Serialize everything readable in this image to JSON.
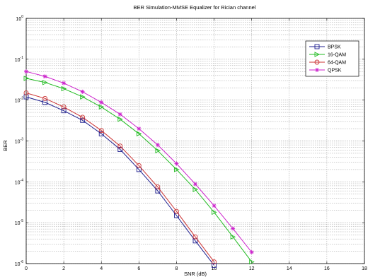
{
  "chart_data": {
    "type": "line",
    "title": "BER Simulation-MMSE Equalizer for Rician channel",
    "xlabel": "SNR (dB)",
    "ylabel": "BER",
    "xlim": [
      0,
      18
    ],
    "ylim": [
      1e-06,
      1
    ],
    "y_scale": "log",
    "grid": true,
    "legend_position": "top-right",
    "x_ticks": [
      "0",
      "2",
      "4",
      "6",
      "8",
      "10",
      "12",
      "14",
      "16",
      "18"
    ],
    "y_ticks": [
      {
        "mantissa": "10",
        "exp": "0",
        "value": 1
      },
      {
        "mantissa": "10",
        "exp": "-1",
        "value": 0.1
      },
      {
        "mantissa": "10",
        "exp": "-2",
        "value": 0.01
      },
      {
        "mantissa": "10",
        "exp": "-3",
        "value": 0.001
      },
      {
        "mantissa": "10",
        "exp": "-4",
        "value": 0.0001
      },
      {
        "mantissa": "10",
        "exp": "-5",
        "value": 1e-05
      },
      {
        "mantissa": "10",
        "exp": "-6",
        "value": 1e-06
      }
    ],
    "series": [
      {
        "name": "BPSK",
        "color": "#1f1f8f",
        "marker": "square",
        "x": [
          0,
          1,
          2,
          3,
          4,
          5,
          6,
          7,
          8,
          9,
          10
        ],
        "values": [
          0.012,
          0.0088,
          0.0055,
          0.0032,
          0.0015,
          0.00062,
          0.0002,
          6e-05,
          1.5e-05,
          3.6e-06,
          9e-07
        ]
      },
      {
        "name": "16-QAM",
        "color": "#22bb22",
        "marker": "triangle-right",
        "x": [
          0,
          1,
          2,
          3,
          4,
          5,
          6,
          7,
          8,
          9,
          10,
          11,
          12
        ],
        "values": [
          0.034,
          0.027,
          0.019,
          0.012,
          0.0068,
          0.0034,
          0.0015,
          0.00058,
          0.0002,
          6.5e-05,
          1.8e-05,
          4.5e-06,
          1.1e-06
        ]
      },
      {
        "name": "64-QAM",
        "color": "#cc3333",
        "marker": "circle",
        "x": [
          0,
          1,
          2,
          3,
          4,
          5,
          6,
          7,
          8,
          9,
          10
        ],
        "values": [
          0.015,
          0.011,
          0.0068,
          0.0038,
          0.0018,
          0.00075,
          0.00025,
          7.5e-05,
          1.9e-05,
          4.5e-06,
          1.1e-06
        ]
      },
      {
        "name": "QPSK",
        "color": "#cc22cc",
        "marker": "star",
        "x": [
          0,
          1,
          2,
          3,
          4,
          5,
          6,
          7,
          8,
          9,
          10,
          11,
          12
        ],
        "values": [
          0.05,
          0.038,
          0.026,
          0.016,
          0.0088,
          0.0045,
          0.002,
          0.0008,
          0.00028,
          8.8e-05,
          2.6e-05,
          7.2e-06,
          1.9e-06
        ]
      }
    ]
  }
}
